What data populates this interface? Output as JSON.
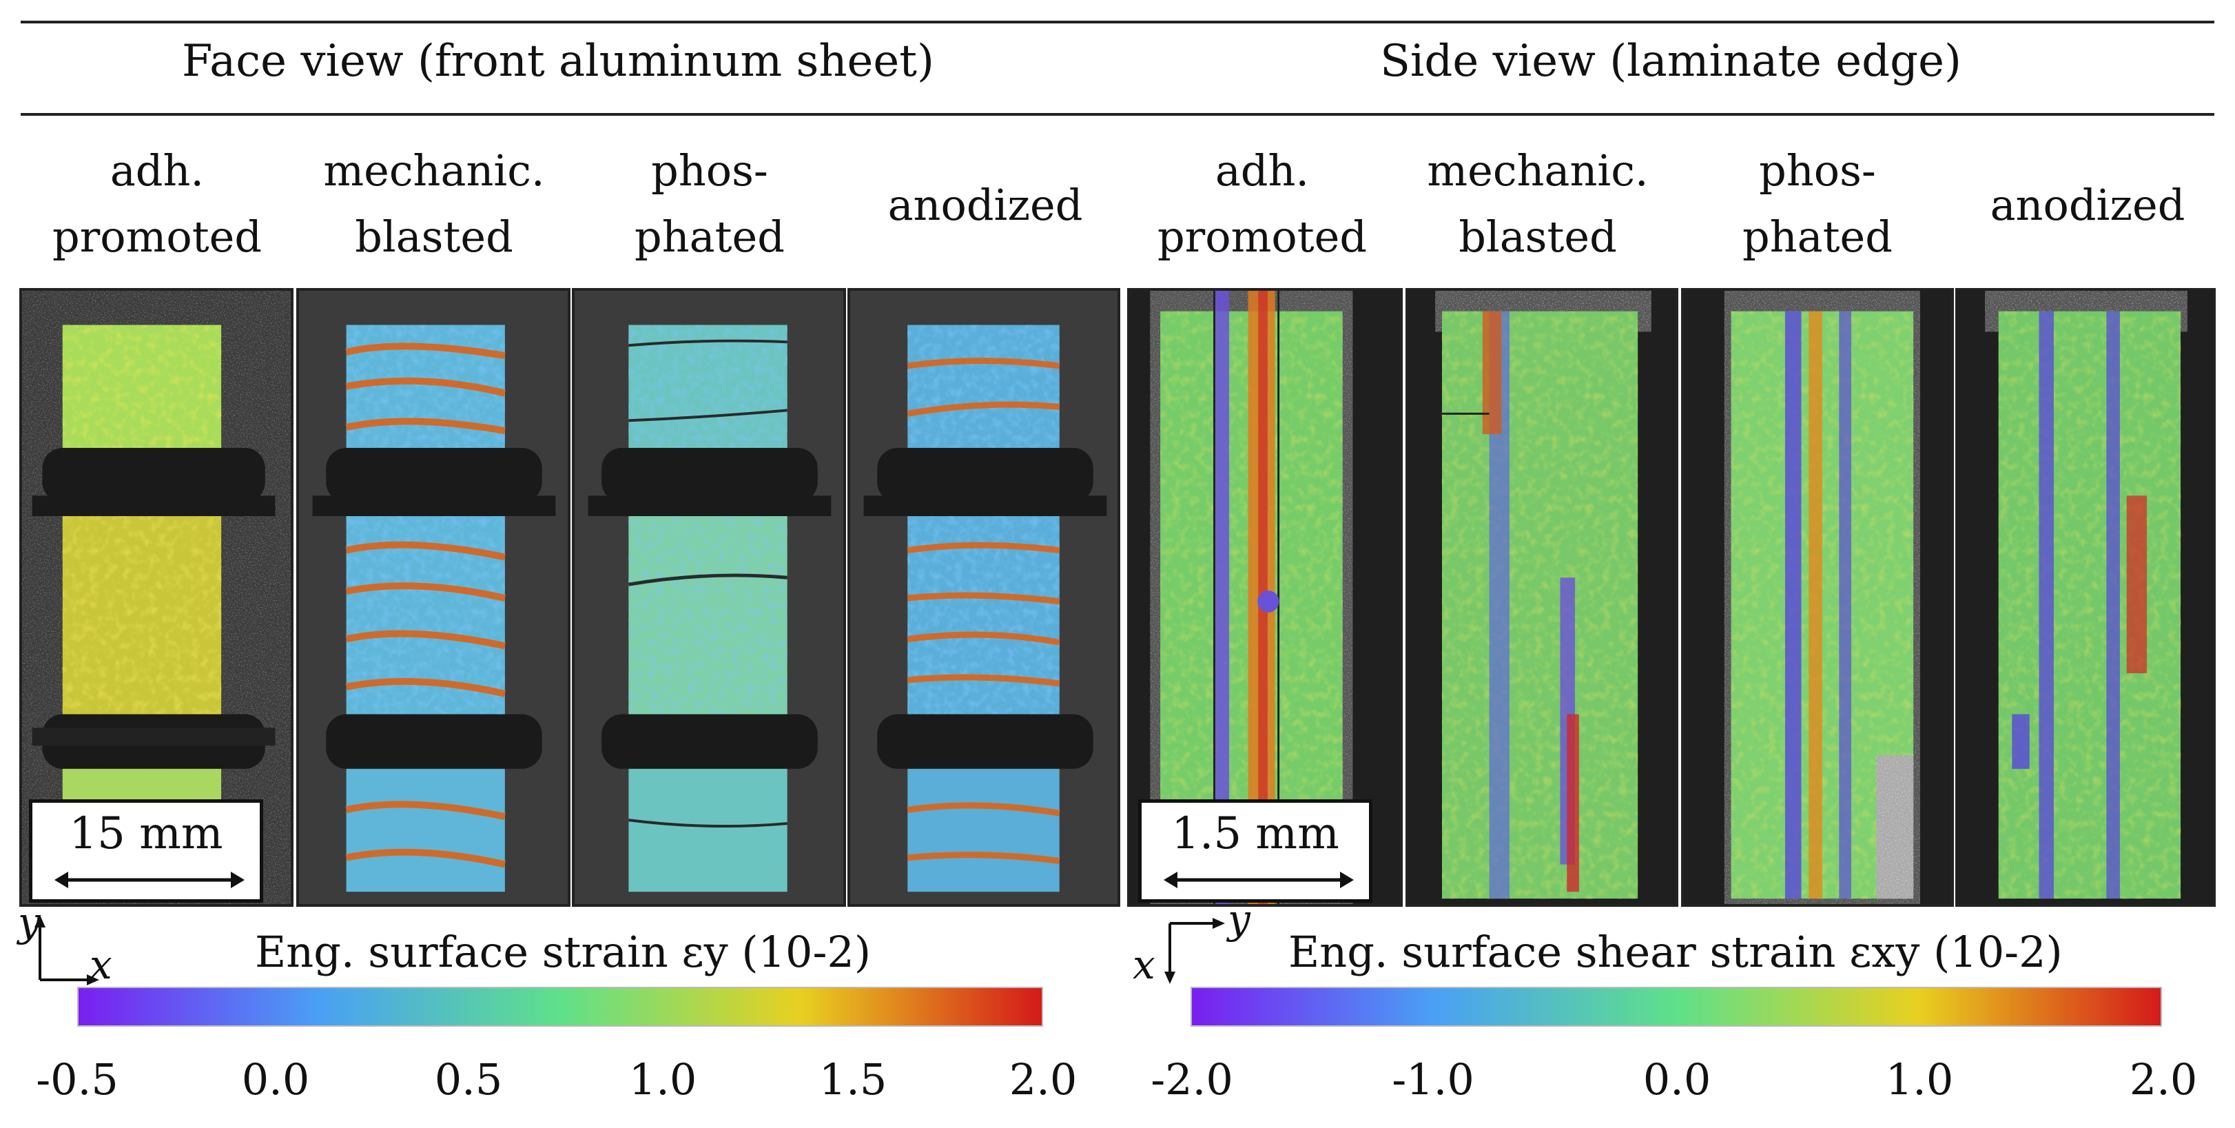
{
  "headers": {
    "face": "Face view (front aluminum sheet)",
    "side": "Side view (laminate edge)"
  },
  "columns": {
    "face": [
      {
        "l1": "adh.",
        "l2": "promoted"
      },
      {
        "l1": "mechanic.",
        "l2": "blasted"
      },
      {
        "l1": "phos-",
        "l2": "phated"
      },
      {
        "l1": "anodized",
        "l2": ""
      }
    ],
    "side": [
      {
        "l1": "adh.",
        "l2": "promoted"
      },
      {
        "l1": "mechanic.",
        "l2": "blasted"
      },
      {
        "l1": "phos-",
        "l2": "phated"
      },
      {
        "l1": "anodized",
        "l2": ""
      }
    ]
  },
  "scalebars": {
    "face": "15 mm",
    "side": "1.5 mm"
  },
  "axes": {
    "face": {
      "vertical": "y",
      "horizontal": "x"
    },
    "side": {
      "vertical": "x",
      "horizontal": "y"
    }
  },
  "colorbars": {
    "face": {
      "title": "Eng. surface strain εy (10-2)",
      "ticks": [
        "-0.5",
        "0.0",
        "0.5",
        "1.0",
        "1.5",
        "2.0"
      ]
    },
    "side": {
      "title": "Eng. surface shear strain εxy (10-2)",
      "ticks": [
        "-2.0",
        "-1.0",
        "0.0",
        "1.0",
        "2.0"
      ]
    }
  },
  "colors": {
    "c_min": "#7a1ff0",
    "c_low": "#4aa0f5",
    "c_mid": "#5fe08a",
    "c_hi": "#e8d020",
    "c_max": "#d41a1a"
  }
}
